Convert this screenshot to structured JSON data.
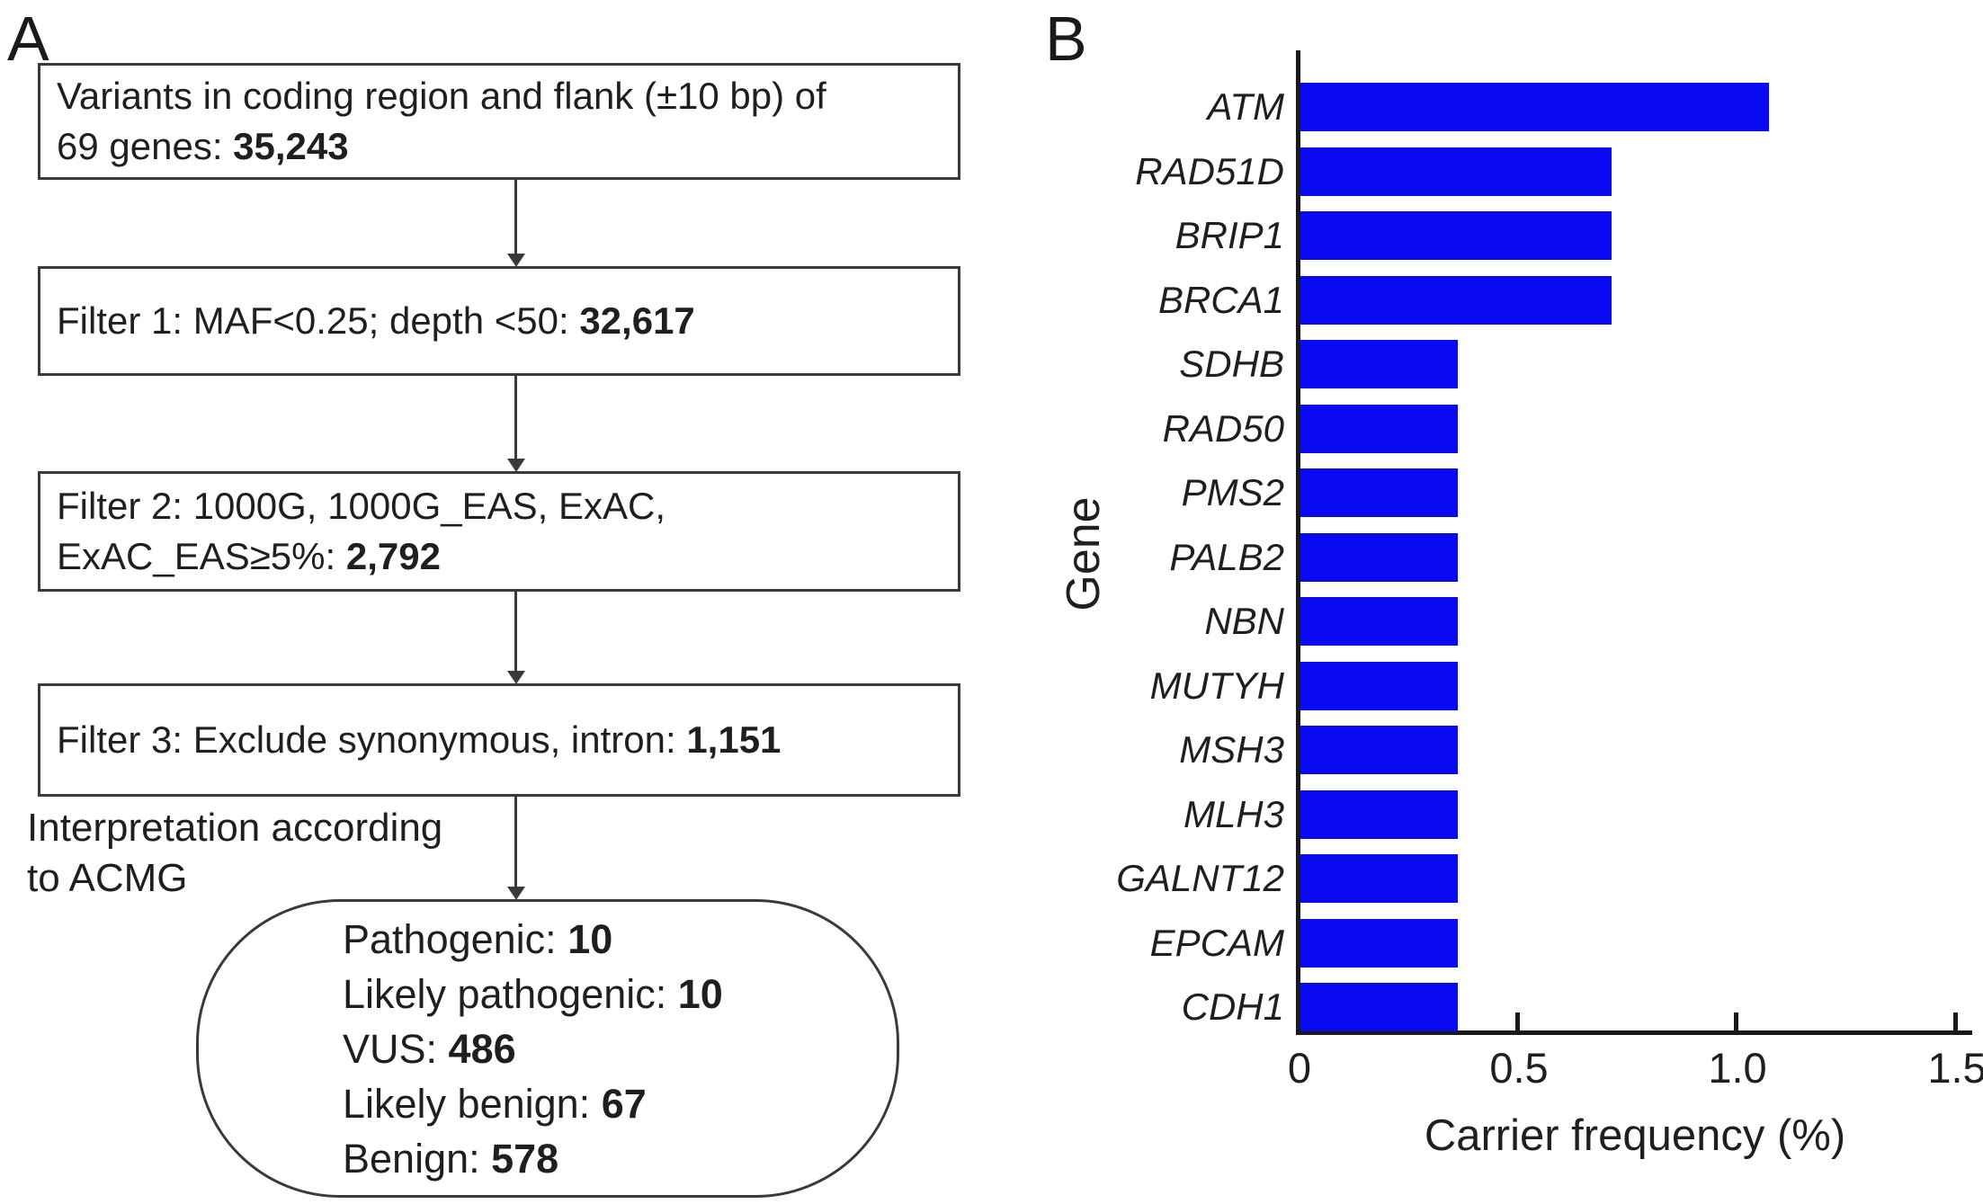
{
  "figure": {
    "colors": {
      "bar": "#0a0af2",
      "axis": "#1a1a1a",
      "box_border": "#3a3a3a",
      "text": "#1f1f1f"
    }
  },
  "panel_a": {
    "label": "A",
    "boxes": [
      {
        "name": "variants-box",
        "lines": [
          [
            {
              "t": "Variants in coding region and flank (±10 bp) of"
            }
          ],
          [
            {
              "t": "69 genes: "
            },
            {
              "t": "35,243",
              "b": true
            }
          ]
        ]
      },
      {
        "name": "filter1-box",
        "lines": [
          [
            {
              "t": "Filter 1: MAF<0.25; depth <50: "
            },
            {
              "t": "32,617",
              "b": true
            }
          ]
        ]
      },
      {
        "name": "filter2-box",
        "lines": [
          [
            {
              "t": "Filter 2: 1000G, 1000G_EAS, ExAC,"
            }
          ],
          [
            {
              "t": "ExAC_EAS≥5%: "
            },
            {
              "t": "2,792",
              "b": true
            }
          ]
        ]
      },
      {
        "name": "filter3-box",
        "lines": [
          [
            {
              "t": "Filter 3: Exclude synonymous, intron: "
            },
            {
              "t": "1,151",
              "b": true
            }
          ]
        ]
      }
    ],
    "note_lines": [
      "Interpretation according",
      "to ACMG"
    ],
    "terminal_lines": [
      [
        {
          "t": "Pathogenic: "
        },
        {
          "t": "10",
          "b": true
        }
      ],
      [
        {
          "t": "Likely pathogenic: "
        },
        {
          "t": "10",
          "b": true
        }
      ],
      [
        {
          "t": "VUS: "
        },
        {
          "t": "486",
          "b": true
        }
      ],
      [
        {
          "t": "Likely benign: "
        },
        {
          "t": "67",
          "b": true
        }
      ],
      [
        {
          "t": "Benign: "
        },
        {
          "t": "578",
          "b": true
        }
      ]
    ]
  },
  "panel_b": {
    "label": "B"
  },
  "chart_data": {
    "type": "bar",
    "orientation": "horizontal",
    "title": "",
    "categories": [
      "ATM",
      "RAD51D",
      "BRIP1",
      "BRCA1",
      "SDHB",
      "RAD50",
      "PMS2",
      "PALB2",
      "NBN",
      "MUTYH",
      "MSH3",
      "MLH3",
      "GALNT12",
      "EPCAM",
      "CDH1"
    ],
    "values": [
      1.07,
      0.71,
      0.71,
      0.71,
      0.36,
      0.36,
      0.36,
      0.36,
      0.36,
      0.36,
      0.36,
      0.36,
      0.36,
      0.36,
      0.36
    ],
    "xlabel": "Carrier frequency (%)",
    "ylabel": "Gene",
    "xlim": [
      0,
      1.54
    ],
    "xticks": [
      {
        "v": 0,
        "label": "0"
      },
      {
        "v": 0.5,
        "label": "0.5"
      },
      {
        "v": 1.0,
        "label": "1.0"
      },
      {
        "v": 1.5,
        "label": "1.5"
      }
    ],
    "grid": false,
    "legend": "none",
    "bar_color": "#0a0af2"
  }
}
